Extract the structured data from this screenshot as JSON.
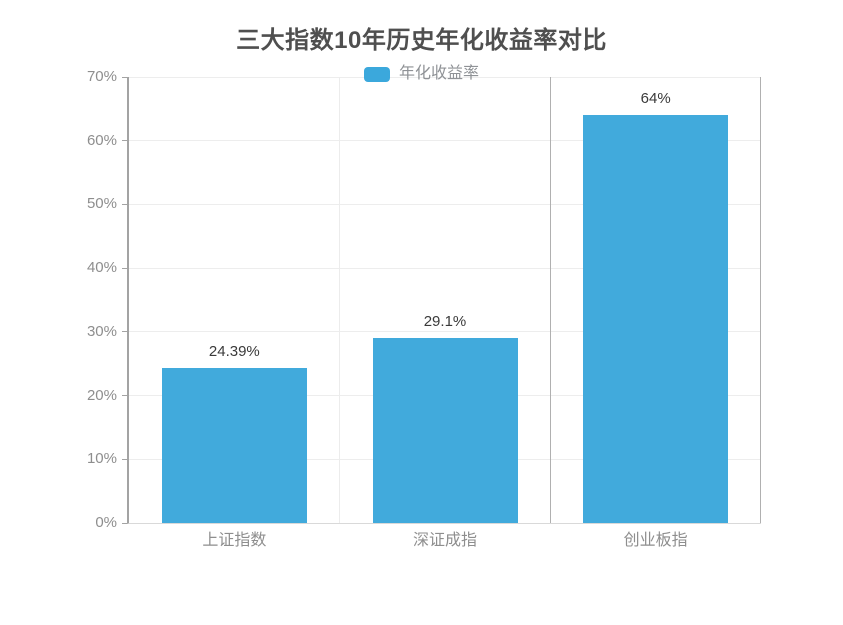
{
  "chart_data": {
    "type": "bar",
    "title": "三大指数10年历史年化收益率对比",
    "legend": [
      "年化收益率"
    ],
    "categories": [
      "上证指数",
      "深证成指",
      "创业板指"
    ],
    "values": [
      24.39,
      29.1,
      64
    ],
    "value_labels": [
      "24.39%",
      "29.1%",
      "64%"
    ],
    "xlabel": "",
    "ylabel": "",
    "ylim": [
      0,
      70
    ],
    "ytick_step": 10,
    "ytick_labels": [
      "0%",
      "10%",
      "20%",
      "30%",
      "40%",
      "50%",
      "60%",
      "70%"
    ],
    "grid": true,
    "legend_position": "top-center"
  },
  "colors": {
    "bar": "#41AADC",
    "legend_swatch": "#3BA8DC",
    "title_text": "#4F4F4F",
    "value_label_text": "#3A3A3A",
    "axis_label_text": "#8E8E8E",
    "legend_label_text": "#8F9296"
  }
}
